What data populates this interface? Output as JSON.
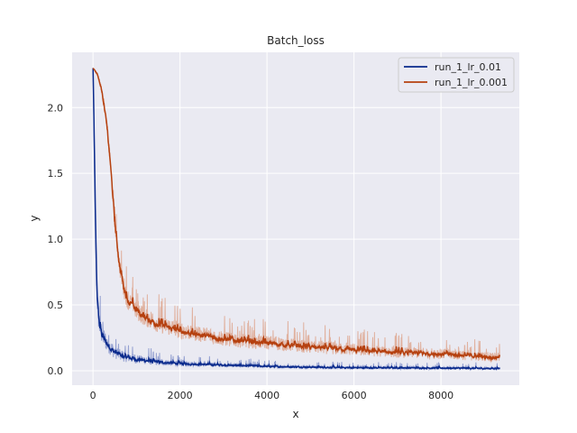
{
  "chart_data": {
    "type": "line",
    "title": "Batch_loss",
    "xlabel": "x",
    "ylabel": "y",
    "xlim": [
      -480,
      9800
    ],
    "ylim": [
      -0.11,
      2.42
    ],
    "xticks": [
      0,
      2000,
      4000,
      6000,
      8000
    ],
    "xtick_labels": [
      "0",
      "2000",
      "4000",
      "6000",
      "8000"
    ],
    "yticks": [
      0.0,
      0.5,
      1.0,
      1.5,
      2.0
    ],
    "ytick_labels": [
      "0.0",
      "0.5",
      "1.0",
      "1.5",
      "2.0"
    ],
    "grid": true,
    "legend_position": "top-right",
    "x_range": [
      0,
      9350
    ],
    "series": [
      {
        "name": "run_1_lr_0.01",
        "color": "#0a2a8c",
        "raw_color": "#7f8fc8",
        "x": [
          0,
          30,
          60,
          90,
          120,
          150,
          200,
          300,
          400,
          500,
          700,
          1000,
          1500,
          2000,
          3000,
          4000,
          5000,
          6000,
          7000,
          8000,
          9000,
          9350
        ],
        "y": [
          2.3,
          1.6,
          0.95,
          0.55,
          0.4,
          0.32,
          0.26,
          0.2,
          0.16,
          0.13,
          0.1,
          0.08,
          0.06,
          0.05,
          0.04,
          0.03,
          0.025,
          0.02,
          0.02,
          0.018,
          0.015,
          0.015
        ],
        "noise": [
          0,
          0.1,
          0.15,
          0.25,
          0.22,
          0.2,
          0.18,
          0.15,
          0.13,
          0.12,
          0.1,
          0.08,
          0.06,
          0.05,
          0.04,
          0.035,
          0.03,
          0.03,
          0.03,
          0.03,
          0.03,
          0.03
        ]
      },
      {
        "name": "run_1_lr_0.001",
        "color": "#b5400f",
        "raw_color": "#dda28a",
        "x": [
          0,
          100,
          200,
          300,
          400,
          500,
          600,
          700,
          800,
          1000,
          1200,
          1500,
          2000,
          3000,
          4000,
          5000,
          6000,
          7000,
          8000,
          9000,
          9350
        ],
        "y": [
          2.3,
          2.25,
          2.12,
          1.9,
          1.55,
          1.1,
          0.8,
          0.62,
          0.52,
          0.44,
          0.39,
          0.34,
          0.29,
          0.23,
          0.2,
          0.17,
          0.15,
          0.13,
          0.12,
          0.1,
          0.09
        ],
        "noise": [
          0,
          0.03,
          0.05,
          0.07,
          0.08,
          0.12,
          0.15,
          0.18,
          0.18,
          0.18,
          0.17,
          0.16,
          0.15,
          0.14,
          0.13,
          0.12,
          0.11,
          0.1,
          0.1,
          0.09,
          0.09
        ]
      }
    ]
  },
  "style": {
    "plot_bg": "#eaeaf2",
    "grid_color": "#ffffff"
  }
}
